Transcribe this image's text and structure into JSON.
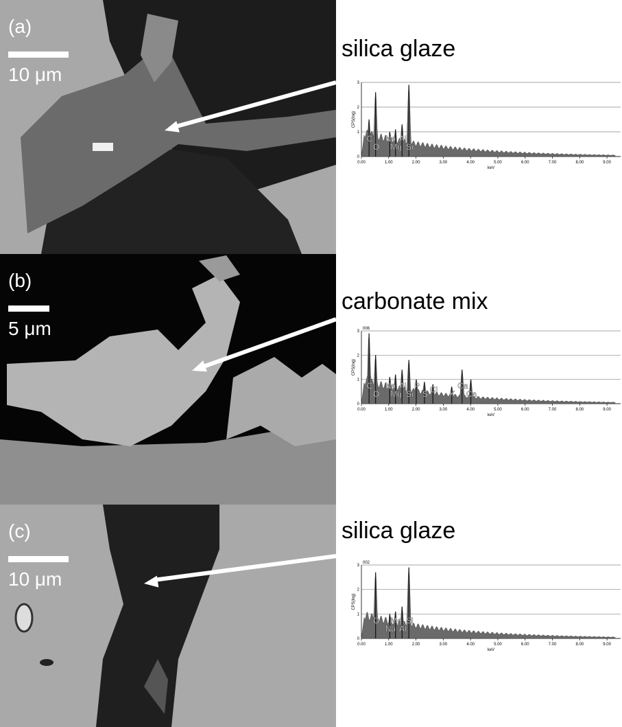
{
  "panels": [
    {
      "label": "(a)",
      "scale_bar": "10 μm",
      "title": "silica glaze",
      "spectrum": {
        "y_label": "CPS(log)",
        "x_label": "keV",
        "xlim": [
          0,
          9.5
        ],
        "ylim": [
          0,
          3
        ],
        "xticks": [
          {
            "value": 0,
            "label": "0.00"
          },
          {
            "value": 1,
            "label": "1.00"
          },
          {
            "value": 2,
            "label": "2.00"
          },
          {
            "value": 3,
            "label": "3.00"
          },
          {
            "value": 4,
            "label": "4.00"
          },
          {
            "value": 5,
            "label": "5.00"
          },
          {
            "value": 6,
            "label": "6.00"
          },
          {
            "value": 7,
            "label": "7.00"
          },
          {
            "value": 8,
            "label": "8.00"
          },
          {
            "value": 9,
            "label": "9.00"
          }
        ],
        "yticks": [
          0,
          1,
          2,
          3
        ],
        "peaks": [
          {
            "label": "C",
            "x": 0.28,
            "y": 1.5
          },
          {
            "label": "O",
            "x": 0.52,
            "y": 2.6
          },
          {
            "label": "Na",
            "x": 1.04,
            "y": 1.0
          },
          {
            "label": "Mg",
            "x": 1.25,
            "y": 1.1
          },
          {
            "label": "Al",
            "x": 1.49,
            "y": 1.3
          },
          {
            "label": "Si",
            "x": 1.74,
            "y": 2.9
          }
        ]
      }
    },
    {
      "label": "(b)",
      "scale_bar": "5 μm",
      "title": "carbonate mix",
      "spectrum": {
        "id": "006",
        "y_label": "CPS(log)",
        "x_label": "keV",
        "xlim": [
          0,
          9.5
        ],
        "ylim": [
          0,
          3
        ],
        "xticks": [
          {
            "value": 0,
            "label": "0.00"
          },
          {
            "value": 1,
            "label": "1.00"
          },
          {
            "value": 2,
            "label": "2.00"
          },
          {
            "value": 3,
            "label": "3.00"
          },
          {
            "value": 4,
            "label": "4.00"
          },
          {
            "value": 5,
            "label": "5.00"
          },
          {
            "value": 6,
            "label": "6.00"
          },
          {
            "value": 7,
            "label": "7.00"
          },
          {
            "value": 8,
            "label": "8.00"
          },
          {
            "value": 9,
            "label": "9.00"
          }
        ],
        "yticks": [
          0,
          1,
          2,
          3
        ],
        "peaks": [
          {
            "label": "C",
            "x": 0.28,
            "y": 2.9
          },
          {
            "label": "O",
            "x": 0.52,
            "y": 2.0
          },
          {
            "label": "Na",
            "x": 1.04,
            "y": 1.1
          },
          {
            "label": "Mg",
            "x": 1.25,
            "y": 1.2
          },
          {
            "label": "Al",
            "x": 1.49,
            "y": 1.4
          },
          {
            "label": "Si",
            "x": 1.74,
            "y": 1.8
          },
          {
            "label": "P",
            "x": 2.01,
            "y": 1.0
          },
          {
            "label": "S",
            "x": 2.31,
            "y": 0.9
          },
          {
            "label": "Cl",
            "x": 2.62,
            "y": 0.8
          },
          {
            "label": "K",
            "x": 3.31,
            "y": 0.7
          },
          {
            "label": "Ca",
            "x": 3.69,
            "y": 1.4
          },
          {
            "label": "Ca",
            "x": 4.01,
            "y": 1.0
          }
        ]
      }
    },
    {
      "label": "(c)",
      "scale_bar": "10 μm",
      "title": "silica glaze",
      "spectrum": {
        "id": "002",
        "y_label": "CPS(log)",
        "x_label": "keV",
        "xlim": [
          0,
          9.5
        ],
        "ylim": [
          0,
          3
        ],
        "xticks": [
          {
            "value": 0,
            "label": "0.00"
          },
          {
            "value": 1,
            "label": "1.00"
          },
          {
            "value": 2,
            "label": "2.00"
          },
          {
            "value": 3,
            "label": "3.00"
          },
          {
            "value": 4,
            "label": "4.00"
          },
          {
            "value": 5,
            "label": "5.00"
          },
          {
            "value": 6,
            "label": "6.00"
          },
          {
            "value": 7,
            "label": "7.00"
          },
          {
            "value": 8,
            "label": "8.00"
          },
          {
            "value": 9,
            "label": "9.00"
          }
        ],
        "yticks": [
          0,
          1,
          2,
          3
        ],
        "peaks": [
          {
            "label": "O",
            "x": 0.52,
            "y": 2.7
          },
          {
            "label": "Na",
            "x": 1.04,
            "y": 1.0
          },
          {
            "label": "Mg",
            "x": 1.25,
            "y": 1.1
          },
          {
            "label": "Al",
            "x": 1.49,
            "y": 1.3
          },
          {
            "label": "Si",
            "x": 1.74,
            "y": 2.9
          }
        ]
      }
    }
  ]
}
